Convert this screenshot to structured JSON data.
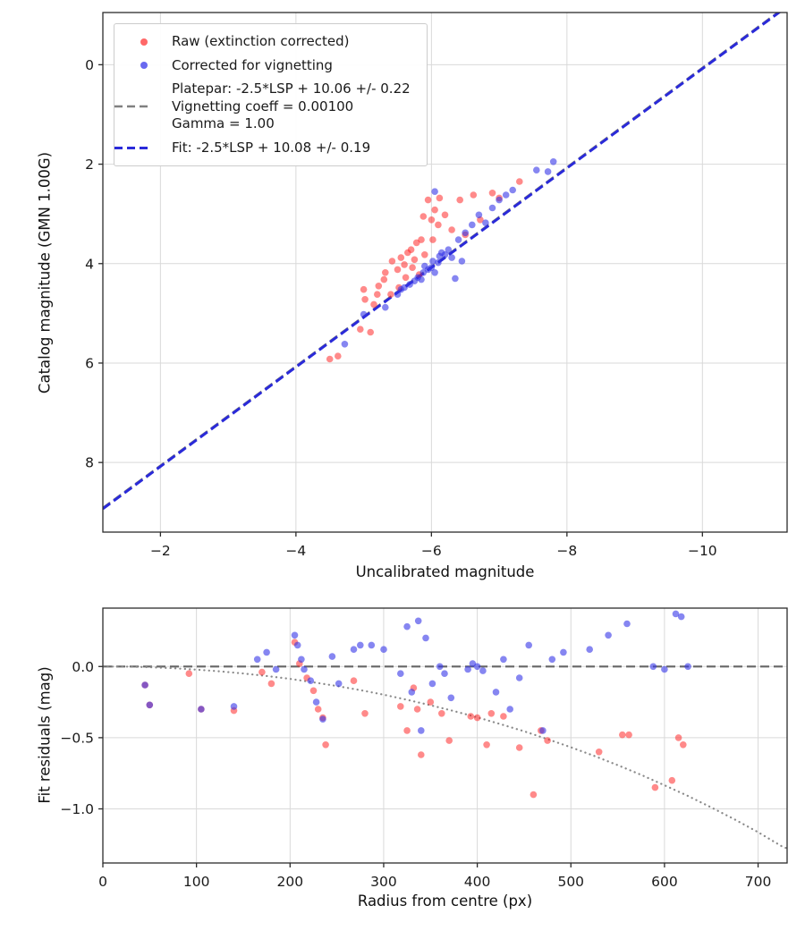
{
  "legend": {
    "raw_label": "Raw (extinction corrected)",
    "corrected_label": "Corrected for vignetting",
    "platepar_line1": "Platepar: -2.5*LSP + 10.06 +/- 0.22",
    "platepar_line2": "Vignetting coeff = 0.00100",
    "platepar_line3": "Gamma = 1.00",
    "fit_label": "Fit: -2.5*LSP + 10.08 +/- 0.19"
  },
  "colors": {
    "raw_point": "#ff2a2a",
    "corrected_point": "#3535e8",
    "fit_line": "#2a2ad9",
    "platepar_line": "#808080",
    "zero_line": "#666666",
    "vignetting_curve": "#8a8a8a",
    "grid": "#d9d9d9",
    "axes": "#2b2b2b"
  },
  "chart_data": [
    {
      "type": "scatter",
      "title": "",
      "xlabel": "Uncalibrated magnitude",
      "ylabel": "Catalog magnitude (GMN 1.00G)",
      "x_range": [
        -1.15,
        -11.25
      ],
      "y_range": [
        -1.05,
        9.4
      ],
      "x_axis_inverted": true,
      "y_axis_inverted": true,
      "grid": true,
      "xticks": {
        "values": [
          -2,
          -4,
          -6,
          -8,
          -10
        ],
        "labels": [
          "−2",
          "−4",
          "−6",
          "−8",
          "−10"
        ]
      },
      "yticks": {
        "values": [
          0,
          2,
          4,
          6,
          8
        ],
        "labels": [
          "0",
          "2",
          "4",
          "6",
          "8"
        ]
      },
      "lines": [
        {
          "name": "platepar",
          "label": "Platepar: -2.5*LSP + 10.06 +/- 0.22 | Vignetting coeff = 0.00100 | Gamma = 1.00",
          "style": "dashed",
          "color": "#808080",
          "width": 2.2,
          "points": [
            [
              -1.15,
              8.91
            ],
            [
              -11.25,
              -1.19
            ]
          ]
        },
        {
          "name": "fit",
          "label": "Fit: -2.5*LSP + 10.08 +/- 0.19",
          "style": "dashed",
          "color": "#2a2ad9",
          "width": 3,
          "points": [
            [
              -1.15,
              8.93
            ],
            [
              -11.25,
              -1.17
            ]
          ]
        }
      ],
      "series": [
        {
          "name": "Raw (extinction corrected)",
          "color": "#ff2a2a",
          "opacity": 0.55,
          "points": [
            [
              -4.5,
              5.92
            ],
            [
              -4.62,
              5.86
            ],
            [
              -4.95,
              5.32
            ],
            [
              -5.0,
              4.52
            ],
            [
              -5.02,
              4.72
            ],
            [
              -5.1,
              5.38
            ],
            [
              -5.15,
              4.82
            ],
            [
              -5.2,
              4.62
            ],
            [
              -5.22,
              4.45
            ],
            [
              -5.3,
              4.32
            ],
            [
              -5.32,
              4.18
            ],
            [
              -5.4,
              4.62
            ],
            [
              -5.42,
              3.95
            ],
            [
              -5.5,
              4.12
            ],
            [
              -5.52,
              4.48
            ],
            [
              -5.55,
              3.88
            ],
            [
              -5.6,
              4.02
            ],
            [
              -5.62,
              4.28
            ],
            [
              -5.65,
              3.78
            ],
            [
              -5.7,
              3.72
            ],
            [
              -5.72,
              4.08
            ],
            [
              -5.75,
              3.92
            ],
            [
              -5.78,
              3.58
            ],
            [
              -5.82,
              4.22
            ],
            [
              -5.85,
              3.52
            ],
            [
              -5.88,
              3.05
            ],
            [
              -5.9,
              3.82
            ],
            [
              -5.95,
              2.72
            ],
            [
              -6.0,
              3.12
            ],
            [
              -6.02,
              3.52
            ],
            [
              -6.05,
              2.92
            ],
            [
              -6.1,
              3.22
            ],
            [
              -6.12,
              2.68
            ],
            [
              -6.2,
              3.02
            ],
            [
              -6.3,
              3.32
            ],
            [
              -6.42,
              2.72
            ],
            [
              -6.5,
              3.42
            ],
            [
              -6.62,
              2.62
            ],
            [
              -6.72,
              3.12
            ],
            [
              -6.9,
              2.58
            ],
            [
              -7.0,
              2.68
            ],
            [
              -7.3,
              2.35
            ]
          ]
        },
        {
          "name": "Corrected for vignetting",
          "color": "#3535e8",
          "opacity": 0.6,
          "points": [
            [
              -4.72,
              5.62
            ],
            [
              -5.0,
              5.02
            ],
            [
              -5.32,
              4.88
            ],
            [
              -5.5,
              4.62
            ],
            [
              -5.55,
              4.52
            ],
            [
              -5.6,
              4.48
            ],
            [
              -5.68,
              4.42
            ],
            [
              -5.75,
              4.35
            ],
            [
              -5.8,
              4.28
            ],
            [
              -5.85,
              4.32
            ],
            [
              -5.88,
              4.18
            ],
            [
              -5.9,
              4.05
            ],
            [
              -5.95,
              4.12
            ],
            [
              -6.0,
              4.08
            ],
            [
              -6.02,
              3.95
            ],
            [
              -6.05,
              4.18
            ],
            [
              -6.1,
              3.98
            ],
            [
              -6.12,
              3.85
            ],
            [
              -6.15,
              3.78
            ],
            [
              -6.2,
              3.82
            ],
            [
              -6.25,
              3.72
            ],
            [
              -6.3,
              3.88
            ],
            [
              -6.35,
              4.3
            ],
            [
              -6.4,
              3.52
            ],
            [
              -6.45,
              3.95
            ],
            [
              -6.5,
              3.38
            ],
            [
              -6.6,
              3.22
            ],
            [
              -6.7,
              3.02
            ],
            [
              -6.8,
              3.18
            ],
            [
              -6.9,
              2.88
            ],
            [
              -7.0,
              2.72
            ],
            [
              -7.1,
              2.62
            ],
            [
              -7.2,
              2.52
            ],
            [
              -7.55,
              2.12
            ],
            [
              -7.72,
              2.15
            ],
            [
              -7.8,
              1.95
            ],
            [
              -6.05,
              2.55
            ]
          ]
        }
      ]
    },
    {
      "type": "scatter",
      "title": "",
      "xlabel": "Radius from centre (px)",
      "ylabel": "Fit residuals (mag)",
      "x_range": [
        0,
        731
      ],
      "y_range": [
        0.41,
        -1.38
      ],
      "grid": true,
      "xticks": {
        "values": [
          0,
          100,
          200,
          300,
          400,
          500,
          600,
          700
        ],
        "labels": [
          "0",
          "100",
          "200",
          "300",
          "400",
          "500",
          "600",
          "700"
        ]
      },
      "yticks": {
        "values": [
          0.0,
          -0.5,
          -1.0
        ],
        "labels": [
          "0.0",
          "−0.5",
          "−1.0"
        ]
      },
      "lines": [
        {
          "name": "zero-residual",
          "style": "dashed",
          "color": "#666666",
          "width": 2.2,
          "points": [
            [
              0,
              0
            ],
            [
              731,
              0
            ]
          ]
        },
        {
          "name": "vignetting-model",
          "style": "dotted",
          "color": "#8a8a8a",
          "width": 2.2,
          "points": [
            [
              0,
              0
            ],
            [
              25,
              -0.001
            ],
            [
              50,
              -0.005
            ],
            [
              75,
              -0.012
            ],
            [
              100,
              -0.022
            ],
            [
              125,
              -0.034
            ],
            [
              150,
              -0.049
            ],
            [
              175,
              -0.067
            ],
            [
              200,
              -0.087
            ],
            [
              225,
              -0.111
            ],
            [
              250,
              -0.137
            ],
            [
              275,
              -0.166
            ],
            [
              300,
              -0.198
            ],
            [
              325,
              -0.234
            ],
            [
              350,
              -0.272
            ],
            [
              375,
              -0.313
            ],
            [
              400,
              -0.357
            ],
            [
              425,
              -0.405
            ],
            [
              450,
              -0.455
            ],
            [
              475,
              -0.51
            ],
            [
              500,
              -0.567
            ],
            [
              525,
              -0.628
            ],
            [
              550,
              -0.693
            ],
            [
              575,
              -0.761
            ],
            [
              600,
              -0.834
            ],
            [
              625,
              -0.909
            ],
            [
              650,
              -0.99
            ],
            [
              675,
              -1.074
            ],
            [
              700,
              -1.164
            ],
            [
              725,
              -1.261
            ],
            [
              731,
              -1.278
            ]
          ]
        }
      ],
      "series": [
        {
          "name": "Raw (extinction corrected)",
          "color": "#ff2a2a",
          "opacity": 0.55,
          "points": [
            [
              45,
              -0.13
            ],
            [
              50,
              -0.27
            ],
            [
              92,
              -0.05
            ],
            [
              105,
              -0.3
            ],
            [
              140,
              -0.31
            ],
            [
              170,
              -0.04
            ],
            [
              180,
              -0.12
            ],
            [
              205,
              0.17
            ],
            [
              210,
              0.02
            ],
            [
              218,
              -0.08
            ],
            [
              225,
              -0.17
            ],
            [
              230,
              -0.3
            ],
            [
              235,
              -0.36
            ],
            [
              238,
              -0.55
            ],
            [
              268,
              -0.1
            ],
            [
              280,
              -0.33
            ],
            [
              318,
              -0.28
            ],
            [
              325,
              -0.45
            ],
            [
              332,
              -0.15
            ],
            [
              336,
              -0.3
            ],
            [
              340,
              -0.62
            ],
            [
              350,
              -0.25
            ],
            [
              362,
              -0.33
            ],
            [
              370,
              -0.52
            ],
            [
              393,
              -0.35
            ],
            [
              400,
              -0.36
            ],
            [
              410,
              -0.55
            ],
            [
              415,
              -0.33
            ],
            [
              428,
              -0.35
            ],
            [
              445,
              -0.57
            ],
            [
              460,
              -0.9
            ],
            [
              468,
              -0.45
            ],
            [
              475,
              -0.52
            ],
            [
              530,
              -0.6
            ],
            [
              555,
              -0.48
            ],
            [
              562,
              -0.48
            ],
            [
              590,
              -0.85
            ],
            [
              608,
              -0.8
            ],
            [
              615,
              -0.5
            ],
            [
              620,
              -0.55
            ]
          ]
        },
        {
          "name": "Corrected for vignetting",
          "color": "#3535e8",
          "opacity": 0.6,
          "points": [
            [
              45,
              -0.13
            ],
            [
              50,
              -0.27
            ],
            [
              105,
              -0.3
            ],
            [
              140,
              -0.28
            ],
            [
              165,
              0.05
            ],
            [
              175,
              0.1
            ],
            [
              185,
              -0.02
            ],
            [
              205,
              0.22
            ],
            [
              208,
              0.15
            ],
            [
              212,
              0.05
            ],
            [
              215,
              -0.02
            ],
            [
              222,
              -0.1
            ],
            [
              228,
              -0.25
            ],
            [
              235,
              -0.37
            ],
            [
              245,
              0.07
            ],
            [
              252,
              -0.12
            ],
            [
              268,
              0.12
            ],
            [
              275,
              0.15
            ],
            [
              287,
              0.15
            ],
            [
              300,
              0.12
            ],
            [
              318,
              -0.05
            ],
            [
              325,
              0.28
            ],
            [
              330,
              -0.18
            ],
            [
              337,
              0.32
            ],
            [
              340,
              -0.45
            ],
            [
              345,
              0.2
            ],
            [
              352,
              -0.12
            ],
            [
              360,
              0.0
            ],
            [
              365,
              -0.05
            ],
            [
              372,
              -0.22
            ],
            [
              390,
              -0.02
            ],
            [
              395,
              0.02
            ],
            [
              400,
              0.0
            ],
            [
              406,
              -0.03
            ],
            [
              420,
              -0.18
            ],
            [
              428,
              0.05
            ],
            [
              435,
              -0.3
            ],
            [
              445,
              -0.08
            ],
            [
              455,
              0.15
            ],
            [
              470,
              -0.45
            ],
            [
              480,
              0.05
            ],
            [
              492,
              0.1
            ],
            [
              520,
              0.12
            ],
            [
              540,
              0.22
            ],
            [
              560,
              0.3
            ],
            [
              588,
              0.0
            ],
            [
              600,
              -0.02
            ],
            [
              612,
              0.37
            ],
            [
              618,
              0.35
            ],
            [
              625,
              0.0
            ]
          ]
        }
      ]
    }
  ]
}
